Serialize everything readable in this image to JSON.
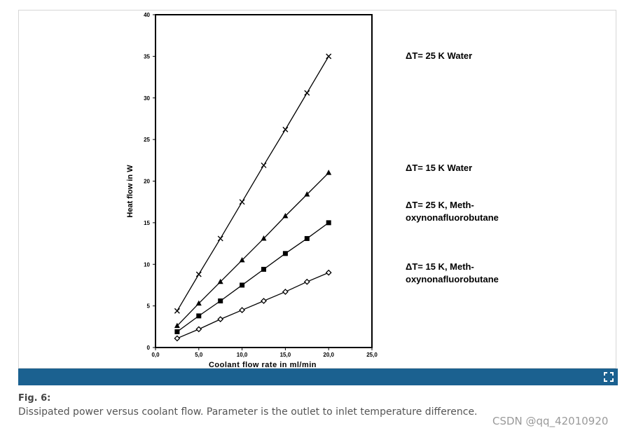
{
  "figure": {
    "label": "Fig. 6:",
    "caption": "Dissipated power versus coolant flow. Parameter is the outlet to inlet temperature difference.",
    "watermark": "CSDN @qq_42010920",
    "expand_icon": "expand-fullscreen-icon",
    "bar_color": "#1b6190"
  },
  "chart_data": {
    "type": "line",
    "title": "",
    "xlabel": "Coolant flow rate  in ml/min",
    "ylabel": "Heat flow  in W",
    "xlim": [
      0,
      25
    ],
    "ylim": [
      0,
      40
    ],
    "x_ticks": [
      "0,0",
      "5,0",
      "10,0",
      "15,0",
      "20,0",
      "25,0"
    ],
    "y_ticks": [
      "0",
      "5",
      "10",
      "15",
      "20",
      "25",
      "30",
      "35",
      "40"
    ],
    "grid": false,
    "x": [
      2.5,
      5.0,
      7.5,
      10.0,
      12.5,
      15.0,
      17.5,
      20.0
    ],
    "series": [
      {
        "name": "ΔT= 25 K  Water",
        "marker": "x",
        "values": [
          4.4,
          8.8,
          13.1,
          17.5,
          21.9,
          26.2,
          30.6,
          35.0
        ]
      },
      {
        "name": "ΔT= 15 K  Water",
        "marker": "triangle",
        "values": [
          2.6,
          5.3,
          7.9,
          10.5,
          13.1,
          15.8,
          18.4,
          21.0
        ]
      },
      {
        "name": "ΔT= 25 K,  Meth-oxynonafluorobutane",
        "marker": "square",
        "label_lines": [
          "ΔT= 25 K,  Meth-",
          "oxynonafluorobutane"
        ],
        "values": [
          1.9,
          3.8,
          5.6,
          7.5,
          9.4,
          11.3,
          13.1,
          15.0
        ]
      },
      {
        "name": "ΔT= 15 K,  Meth-oxynonafluorobutane",
        "marker": "diamond",
        "label_lines": [
          "ΔT= 15 K,  Meth-",
          "oxynonafluorobutane"
        ],
        "values": [
          1.1,
          2.2,
          3.4,
          4.5,
          5.6,
          6.7,
          7.9,
          9.0
        ]
      }
    ],
    "legend": "right"
  }
}
